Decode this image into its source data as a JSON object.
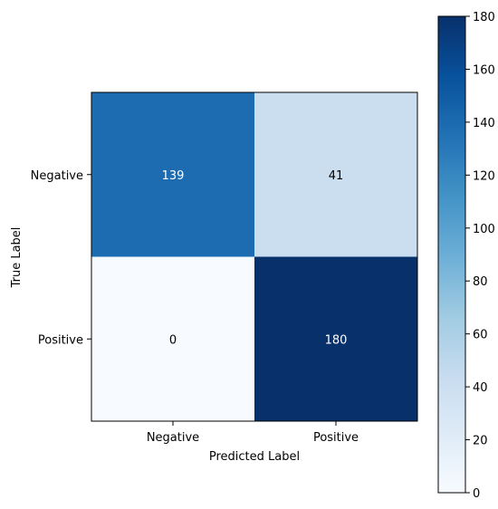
{
  "chart_data": {
    "type": "heatmap",
    "title": "",
    "xlabel": "Predicted Label",
    "ylabel": "True Label",
    "x_categories": [
      "Negative",
      "Positive"
    ],
    "y_categories": [
      "Negative",
      "Positive"
    ],
    "values": [
      [
        139,
        41
      ],
      [
        0,
        180
      ]
    ],
    "colorscale": "Blues",
    "colorbar": {
      "min": 0,
      "max": 180,
      "ticks": [
        "0",
        "20",
        "40",
        "60",
        "80",
        "100",
        "120",
        "140",
        "160",
        "180"
      ]
    },
    "cell_text_colors": {
      "dark_background": "#ffffff",
      "light_background": "#000000"
    },
    "grid": false,
    "legend": "colorbar-right"
  }
}
